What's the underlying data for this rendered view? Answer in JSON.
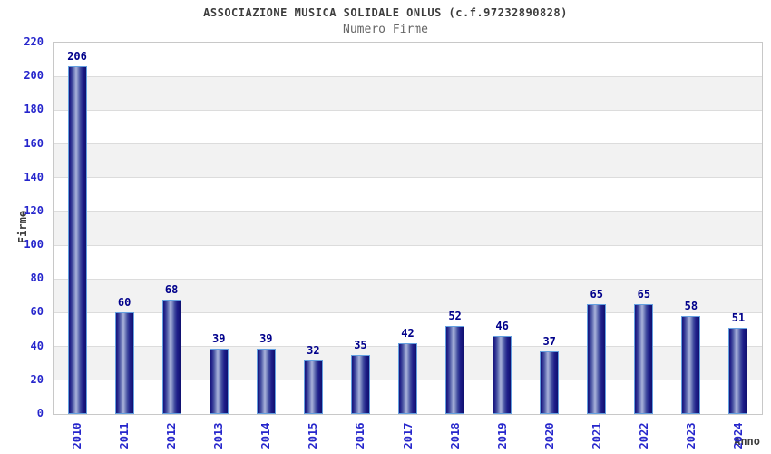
{
  "chart_data": {
    "type": "bar",
    "title": "ASSOCIAZIONE MUSICA SOLIDALE ONLUS (c.f.97232890828)",
    "subtitle": "Numero Firme",
    "xlabel": "Anno",
    "ylabel": "Firme",
    "categories": [
      "2010",
      "2011",
      "2012",
      "2013",
      "2014",
      "2015",
      "2016",
      "2017",
      "2018",
      "2019",
      "2020",
      "2021",
      "2022",
      "2023",
      "2024"
    ],
    "values": [
      206,
      60,
      68,
      39,
      39,
      32,
      35,
      42,
      52,
      46,
      37,
      65,
      65,
      58,
      51
    ],
    "ylim": [
      0,
      220
    ],
    "ytick_step": 20,
    "grid": true,
    "legend_position": "none",
    "band_pattern": "alternating horizontal stripes of 20 units, white from bottom",
    "colors": {
      "tick_label": "#2626cc",
      "value_label": "#00008b",
      "title": "#3c3c3c",
      "subtitle": "#666666",
      "axis_title": "#3c3c3c",
      "band_gray": "#f2f2f2",
      "band_white": "#ffffff",
      "grid": "#dcdcdc",
      "plot_border": "#c8c8c8",
      "bar_border": "#64a0e0",
      "bar_dark": "#15157a",
      "bar_light": "#aab4da"
    }
  }
}
